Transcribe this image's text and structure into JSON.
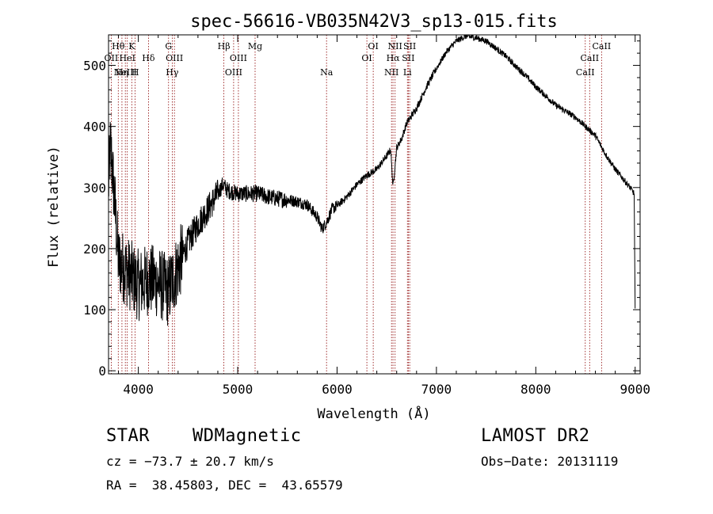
{
  "chart_data": {
    "type": "line",
    "title": "spec-56616-VB035N42V3_sp13-015.fits",
    "xlabel": "Wavelength (Å)",
    "ylabel": "Flux (relative)",
    "xlim": [
      3700,
      9050
    ],
    "ylim": [
      -5,
      550
    ],
    "xticks": [
      4000,
      5000,
      6000,
      7000,
      8000,
      9000
    ],
    "yticks": [
      0,
      100,
      200,
      300,
      400,
      500
    ],
    "grid": false,
    "line_color": "#000000",
    "marker_color": "#8b0000",
    "spectrum_anchors": {
      "x": [
        3700,
        3720,
        3760,
        3800,
        3900,
        4000,
        4100,
        4200,
        4300,
        4400,
        4500,
        4600,
        4700,
        4800,
        4850,
        4900,
        5000,
        5100,
        5200,
        5300,
        5400,
        5500,
        5600,
        5700,
        5800,
        5850,
        5900,
        5950,
        6000,
        6100,
        6200,
        6300,
        6400,
        6500,
        6540,
        6563,
        6600,
        6650,
        6700,
        6800,
        6900,
        7000,
        7100,
        7200,
        7300,
        7400,
        7500,
        7600,
        7700,
        7800,
        7900,
        8000,
        8100,
        8200,
        8300,
        8400,
        8500,
        8600,
        8700,
        8800,
        8900,
        8950,
        8990,
        9000
      ],
      "y": [
        300,
        370,
        280,
        180,
        160,
        140,
        150,
        145,
        130,
        170,
        210,
        240,
        265,
        290,
        305,
        295,
        290,
        290,
        290,
        285,
        282,
        280,
        277,
        272,
        252,
        232,
        245,
        265,
        270,
        285,
        305,
        320,
        330,
        352,
        362,
        300,
        365,
        380,
        405,
        430,
        465,
        495,
        522,
        540,
        548,
        545,
        540,
        528,
        515,
        498,
        483,
        465,
        450,
        435,
        425,
        415,
        400,
        385,
        355,
        330,
        310,
        300,
        290,
        100
      ]
    },
    "annotation_lines": [
      {
        "x": 3798,
        "row": 1,
        "label": "Hθ"
      },
      {
        "x": 3727,
        "row": 2,
        "label": "OII"
      },
      {
        "x": 3869,
        "row": 3,
        "label": "NeIII"
      },
      {
        "x": 3835,
        "row": 3,
        "label": "Hη"
      },
      {
        "x": 3889,
        "row": 2,
        "label": "HeI"
      },
      {
        "x": 3934,
        "row": 1,
        "label": "K"
      },
      {
        "x": 3968,
        "row": 3,
        "label": "H"
      },
      {
        "x": 4102,
        "row": 2,
        "label": "Hδ"
      },
      {
        "x": 4304,
        "row": 1,
        "label": "G"
      },
      {
        "x": 4341,
        "row": 3,
        "label": "Hγ"
      },
      {
        "x": 4363,
        "row": 2,
        "label": "OIII"
      },
      {
        "x": 4861,
        "row": 1,
        "label": "Hβ"
      },
      {
        "x": 4959,
        "row": 3,
        "label": "OIII"
      },
      {
        "x": 5007,
        "row": 2,
        "label": "OIII"
      },
      {
        "x": 5175,
        "row": 1,
        "label": "Mg"
      },
      {
        "x": 5894,
        "row": 3,
        "label": "Na"
      },
      {
        "x": 6300,
        "row": 2,
        "label": "OI"
      },
      {
        "x": 6364,
        "row": 1,
        "label": "OI"
      },
      {
        "x": 6548,
        "row": 3,
        "label": "NII"
      },
      {
        "x": 6563,
        "row": 2,
        "label": "Hα"
      },
      {
        "x": 6584,
        "row": 1,
        "label": "NII"
      },
      {
        "x": 6708,
        "row": 3,
        "label": "Li"
      },
      {
        "x": 6717,
        "row": 2,
        "label": "SII"
      },
      {
        "x": 6731,
        "row": 1,
        "label": "SII"
      },
      {
        "x": 8498,
        "row": 3,
        "label": "CaII"
      },
      {
        "x": 8542,
        "row": 2,
        "label": "CaII"
      },
      {
        "x": 8662,
        "row": 1,
        "label": "CaII"
      }
    ]
  },
  "info": {
    "object_type": "STAR",
    "subclass": "WDMagnetic",
    "survey": "LAMOST DR2",
    "redshift_text": "cz = −73.7 ± 20.7 km/s",
    "obs_date": "Obs−Date: 20131119",
    "coords": "RA =  38.45803, DEC =  43.65579"
  }
}
